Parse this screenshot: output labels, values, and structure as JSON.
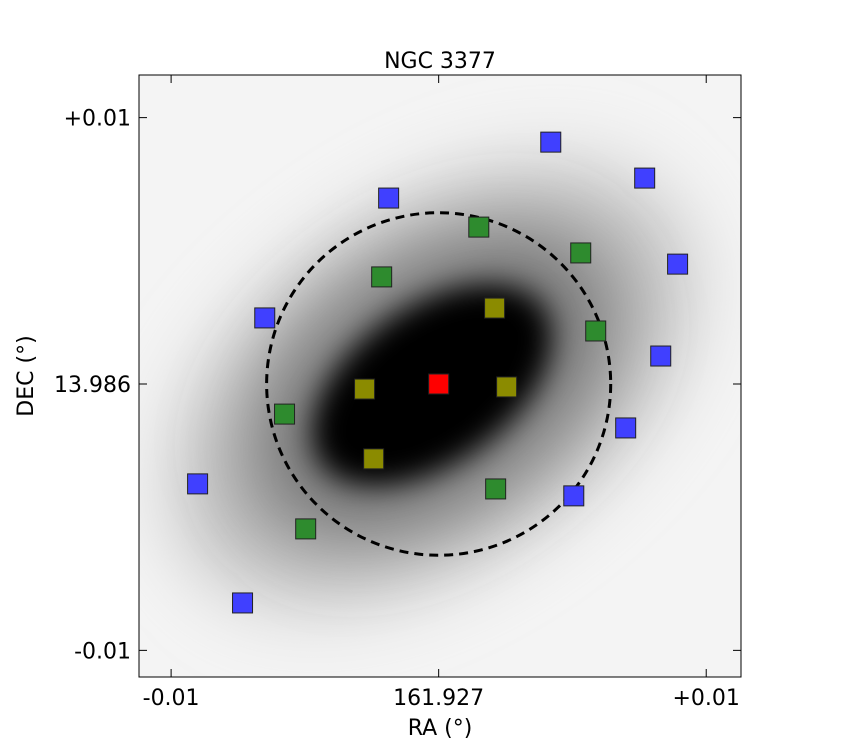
{
  "chart_data": {
    "type": "scatter",
    "title": "NGC 3377",
    "x_label": "RA (°)",
    "y_label": "DEC (°)",
    "xlim": [
      -0.0112,
      0.0113
    ],
    "ylim": [
      -0.011,
      0.0116
    ],
    "xticks": [
      {
        "value": -0.01,
        "label": "-0.01"
      },
      {
        "value": 0,
        "label": "161.927"
      },
      {
        "value": 0.01,
        "label": "+0.01"
      }
    ],
    "yticks": [
      {
        "value": -0.01,
        "label": "-0.01"
      },
      {
        "value": 0,
        "label": "13.986"
      },
      {
        "value": 0.01,
        "label": "+0.01"
      }
    ],
    "circle": {
      "x": 0,
      "y": 0,
      "radius": 0.00643
    },
    "series": [
      {
        "color": "#4040ff",
        "x": [
          0.00419,
          0.0077,
          0.00893,
          0.0083,
          0.00699,
          0.00505,
          -0.00187,
          -0.0065,
          -0.00901,
          -0.00733
        ],
        "values": [
          0.00908,
          0.00773,
          0.0045,
          0.00105,
          -0.00165,
          -0.0042,
          0.00698,
          0.00248,
          -0.00375,
          -0.00822
        ]
      },
      {
        "color": "#2e8b2e",
        "x": [
          0.0015,
          0.00531,
          0.00587,
          -0.00213,
          -0.00576,
          0.00213,
          -0.00497
        ],
        "values": [
          0.00589,
          0.00492,
          0.00199,
          0.00402,
          -0.00113,
          -0.00394,
          -0.00544
        ]
      },
      {
        "color": "#8b8b00",
        "x": [
          0.00209,
          0.00254,
          -0.00277,
          -0.00243
        ],
        "values": [
          0.00285,
          -0.00011,
          -0.00019,
          -0.00281
        ]
      },
      {
        "color": "#ff0000",
        "x": [
          0
        ],
        "values": [
          0
        ]
      }
    ]
  }
}
